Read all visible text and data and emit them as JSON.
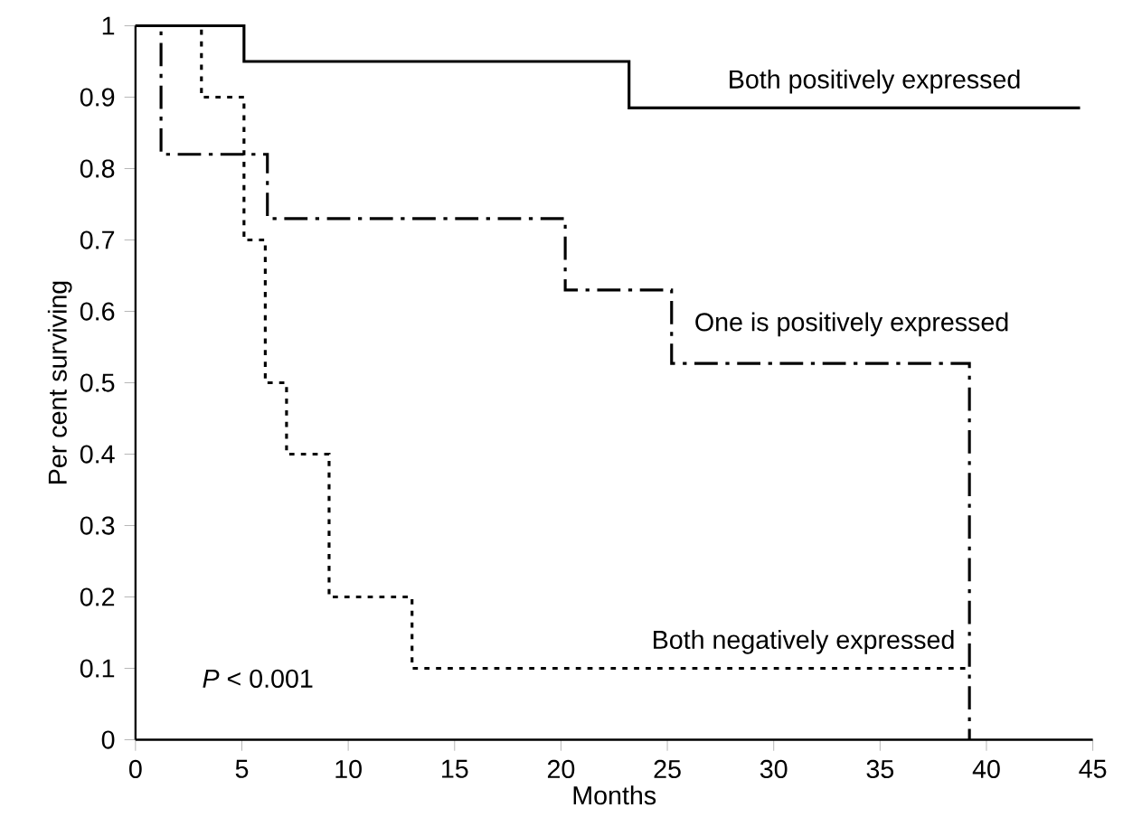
{
  "chart_data": {
    "type": "step",
    "xlabel": "Months",
    "ylabel": "Per cent surviving",
    "xlim": [
      0,
      45
    ],
    "ylim": [
      0,
      1
    ],
    "xticks": [
      0,
      5,
      10,
      15,
      20,
      25,
      30,
      35,
      40,
      45
    ],
    "yticks": [
      0,
      0.1,
      0.2,
      0.3,
      0.4,
      0.5,
      0.6,
      0.7,
      0.8,
      0.9,
      1
    ],
    "grid": false,
    "marker": "none",
    "annotations": [
      "*P* < 0.001"
    ],
    "series": [
      {
        "name": "Both positively expressed",
        "color": "#000000",
        "line_style": "solid",
        "x": [
          0,
          5.1,
          23.2,
          44.4
        ],
        "values": [
          1,
          0.95,
          0.885,
          0.885
        ]
      },
      {
        "name": "One is positively expressed",
        "color": "#000000",
        "line_style": "dashed",
        "x": [
          0,
          1.2,
          6.2,
          20.2,
          25.2,
          39.2
        ],
        "values": [
          1,
          0.82,
          0.73,
          0.63,
          0.527,
          0
        ]
      },
      {
        "name": "Both negatively expressed",
        "color": "#000000",
        "line_style": "dotted",
        "x": [
          0,
          3.1,
          5.1,
          6.1,
          7.1,
          9.1,
          13,
          39.1
        ],
        "values": [
          1,
          0.9,
          0.7,
          0.5,
          0.4,
          0.2,
          0.1,
          0.1
        ]
      }
    ]
  }
}
